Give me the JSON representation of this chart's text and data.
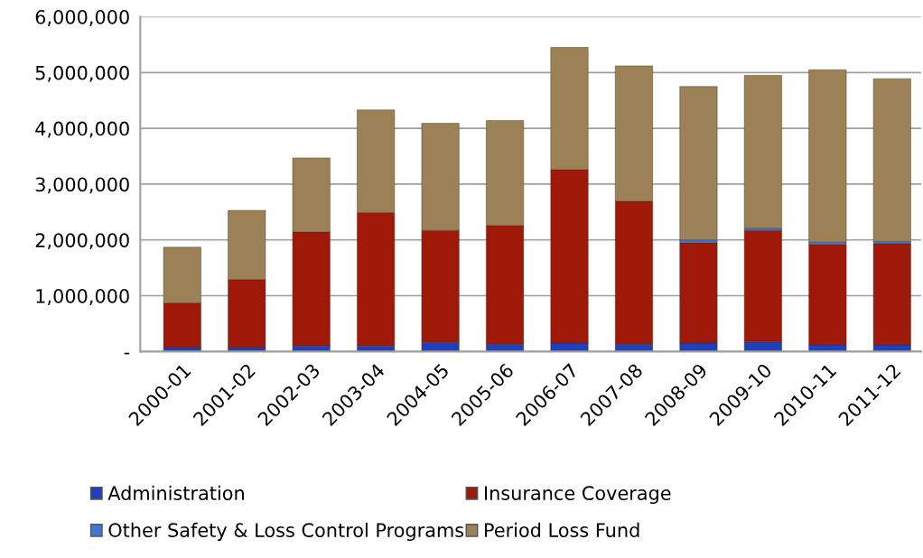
{
  "chart_data": {
    "type": "bar",
    "stacked": true,
    "categories": [
      "2000-01",
      "2001-02",
      "2002-03",
      "2003-04",
      "2004-05",
      "2005-06",
      "2006-07",
      "2007-08",
      "2008-09",
      "2009-10",
      "2010-11",
      "2011-12"
    ],
    "series": [
      {
        "name": "Administration",
        "color": "#1f3fbf",
        "values": [
          70000,
          70000,
          100000,
          100000,
          160000,
          130000,
          150000,
          130000,
          150000,
          170000,
          120000,
          120000
        ]
      },
      {
        "name": "Insurance Coverage",
        "color": "#a01808",
        "values": [
          800000,
          1220000,
          2040000,
          2390000,
          2010000,
          2130000,
          3110000,
          2560000,
          1800000,
          2000000,
          1800000,
          1810000
        ]
      },
      {
        "name": "Other Safety & Loss Control Programs",
        "color": "#3a78e0",
        "values": [
          null,
          null,
          null,
          null,
          null,
          null,
          null,
          null,
          50000,
          40000,
          40000,
          40000
        ]
      },
      {
        "name": "Period Loss Fund",
        "color": "#9b8155",
        "values": [
          1000000,
          1240000,
          1330000,
          1840000,
          1920000,
          1880000,
          2190000,
          2430000,
          2750000,
          2740000,
          3090000,
          2920000
        ]
      }
    ],
    "ylim": [
      0,
      6000000
    ],
    "yticks": [
      {
        "value": 0,
        "label": "-"
      },
      {
        "value": 1000000,
        "label": "1,000,000"
      },
      {
        "value": 2000000,
        "label": "2,000,000"
      },
      {
        "value": 3000000,
        "label": "3,000,000"
      },
      {
        "value": 4000000,
        "label": "4,000,000"
      },
      {
        "value": 5000000,
        "label": "5,000,000"
      },
      {
        "value": 6000000,
        "label": "6,000,000"
      }
    ],
    "grid": "y",
    "legend": "bottom"
  }
}
